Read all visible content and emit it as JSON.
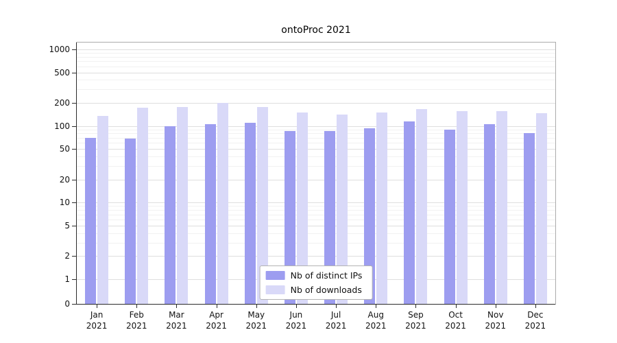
{
  "chart_data": {
    "type": "bar",
    "title": "ontoProc 2021",
    "categories": [
      "Jan",
      "Feb",
      "Mar",
      "Apr",
      "May",
      "Jun",
      "Jul",
      "Aug",
      "Sep",
      "Oct",
      "Nov",
      "Dec"
    ],
    "year_label": "2021",
    "series": [
      {
        "name": "Nb of distinct IPs",
        "color": "#9d9df0",
        "values": [
          70,
          68,
          100,
          105,
          110,
          85,
          85,
          93,
          115,
          90,
          105,
          80
        ]
      },
      {
        "name": "Nb of downloads",
        "color": "#d9d9f8",
        "values": [
          135,
          172,
          177,
          200,
          177,
          150,
          142,
          150,
          165,
          155,
          155,
          148
        ]
      }
    ],
    "yscale": "symlog",
    "yticks": [
      1000,
      500,
      200,
      100,
      50,
      20,
      10,
      5,
      2,
      1,
      0
    ],
    "ylim": [
      0,
      1200
    ],
    "grid": true,
    "legend_position": "lower center"
  }
}
